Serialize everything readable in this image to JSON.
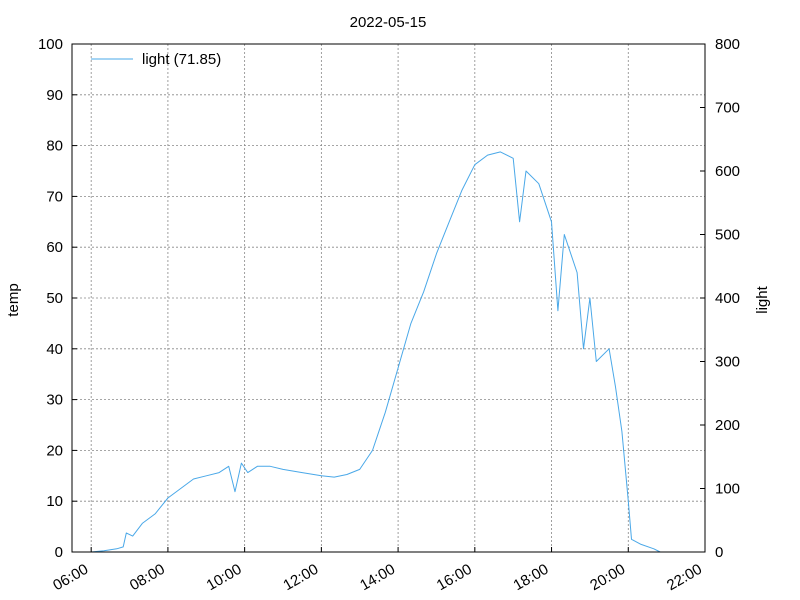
{
  "chart_data": {
    "type": "line",
    "title": "2022-05-15",
    "ylabel_left": "temp",
    "ylabel_right": "light",
    "xlim": [
      "05:30",
      "22:00"
    ],
    "ylim_left": [
      0,
      100
    ],
    "ylim_right": [
      0,
      800
    ],
    "x_ticks": [
      "06:00",
      "08:00",
      "10:00",
      "12:00",
      "14:00",
      "16:00",
      "18:00",
      "20:00",
      "22:00"
    ],
    "y_left_ticks": [
      0,
      10,
      20,
      30,
      40,
      50,
      60,
      70,
      80,
      90,
      100
    ],
    "y_right_ticks": [
      0,
      100,
      200,
      300,
      400,
      500,
      600,
      700,
      800
    ],
    "grid": true,
    "legend_position": "top-left",
    "series": [
      {
        "name": "light (71.85)",
        "axis": "right",
        "color": "#4aa8e8",
        "points": [
          [
            "06:00",
            0
          ],
          [
            "06:20",
            2
          ],
          [
            "06:40",
            5
          ],
          [
            "06:50",
            8
          ],
          [
            "06:55",
            30
          ],
          [
            "07:05",
            25
          ],
          [
            "07:20",
            45
          ],
          [
            "07:40",
            60
          ],
          [
            "08:00",
            85
          ],
          [
            "08:20",
            100
          ],
          [
            "08:40",
            115
          ],
          [
            "09:00",
            120
          ],
          [
            "09:20",
            125
          ],
          [
            "09:35",
            135
          ],
          [
            "09:45",
            95
          ],
          [
            "09:55",
            140
          ],
          [
            "10:05",
            125
          ],
          [
            "10:20",
            135
          ],
          [
            "10:40",
            135
          ],
          [
            "11:00",
            130
          ],
          [
            "11:30",
            125
          ],
          [
            "12:00",
            120
          ],
          [
            "12:20",
            118
          ],
          [
            "12:40",
            122
          ],
          [
            "13:00",
            130
          ],
          [
            "13:20",
            160
          ],
          [
            "13:40",
            220
          ],
          [
            "14:00",
            290
          ],
          [
            "14:20",
            360
          ],
          [
            "14:40",
            410
          ],
          [
            "15:00",
            470
          ],
          [
            "15:20",
            520
          ],
          [
            "15:40",
            570
          ],
          [
            "16:00",
            610
          ],
          [
            "16:20",
            625
          ],
          [
            "16:40",
            630
          ],
          [
            "17:00",
            620
          ],
          [
            "17:10",
            520
          ],
          [
            "17:20",
            600
          ],
          [
            "17:40",
            580
          ],
          [
            "18:00",
            520
          ],
          [
            "18:10",
            380
          ],
          [
            "18:20",
            500
          ],
          [
            "18:40",
            440
          ],
          [
            "18:50",
            320
          ],
          [
            "19:00",
            400
          ],
          [
            "19:10",
            300
          ],
          [
            "19:30",
            320
          ],
          [
            "19:40",
            260
          ],
          [
            "19:50",
            190
          ],
          [
            "20:00",
            80
          ],
          [
            "20:05",
            20
          ],
          [
            "20:20",
            12
          ],
          [
            "20:40",
            5
          ],
          [
            "20:50",
            0
          ]
        ]
      }
    ]
  }
}
